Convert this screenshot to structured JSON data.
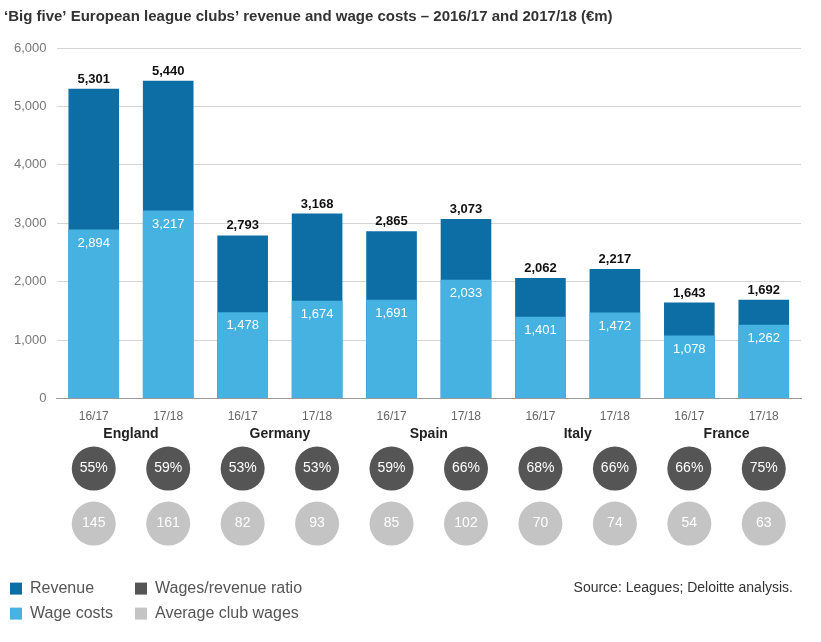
{
  "chart_data": {
    "type": "bar",
    "title": "‘Big five’ European league clubs’ revenue and wage costs – 2016/17 and 2017/18 (€m)",
    "source": "Source: Leagues; Deloitte analysis.",
    "categories": [
      "16/17",
      "17/18",
      "16/17",
      "17/18",
      "16/17",
      "17/18",
      "16/17",
      "17/18",
      "16/17",
      "17/18"
    ],
    "category_groups": [
      "England",
      "England",
      "Germany",
      "Germany",
      "Spain",
      "Spain",
      "Italy",
      "Italy",
      "France",
      "France"
    ],
    "series": [
      {
        "name": "Revenue",
        "color": "#0d6ea5",
        "values": [
          5301,
          5440,
          2793,
          3168,
          2865,
          3073,
          2062,
          2217,
          1643,
          1692
        ],
        "value_labels": [
          "5,301",
          "5,440",
          "2,793",
          "3,168",
          "2,865",
          "3,073",
          "2,062",
          "2,217",
          "1,643",
          "1,692"
        ]
      },
      {
        "name": "Wage costs",
        "color": "#46b2e2",
        "values": [
          2894,
          3217,
          1478,
          1674,
          1691,
          2033,
          1401,
          1472,
          1078,
          1262
        ],
        "value_labels": [
          "2,894",
          "3,217",
          "1,478",
          "1,674",
          "1,691",
          "2,033",
          "1,401",
          "1,472",
          "1,078",
          "1,262"
        ]
      },
      {
        "name": "Wages/revenue ratio",
        "color": "#555555",
        "type": "circle",
        "values": [
          55,
          59,
          53,
          53,
          59,
          66,
          68,
          66,
          66,
          75
        ],
        "value_labels": [
          "55%",
          "59%",
          "53%",
          "53%",
          "59%",
          "66%",
          "68%",
          "66%",
          "66%",
          "75%"
        ]
      },
      {
        "name": "Average club wages",
        "color": "#c4c4c4",
        "type": "circle",
        "values": [
          145,
          161,
          82,
          93,
          85,
          102,
          70,
          74,
          54,
          63
        ]
      }
    ],
    "ylim": [
      0,
      6000
    ],
    "yticks": [
      0,
      {
        "value": 1000,
        "label": "1,000"
      },
      {
        "value": 2000,
        "label": "2,000"
      },
      {
        "value": 3000,
        "label": "3,000"
      },
      {
        "value": 4000,
        "label": "4,000"
      },
      {
        "value": 5000,
        "label": "5,000"
      },
      {
        "value": 6000,
        "label": "6,000"
      }
    ],
    "grid": true,
    "stacked": false,
    "data_labels": true,
    "legend": "bottom"
  }
}
